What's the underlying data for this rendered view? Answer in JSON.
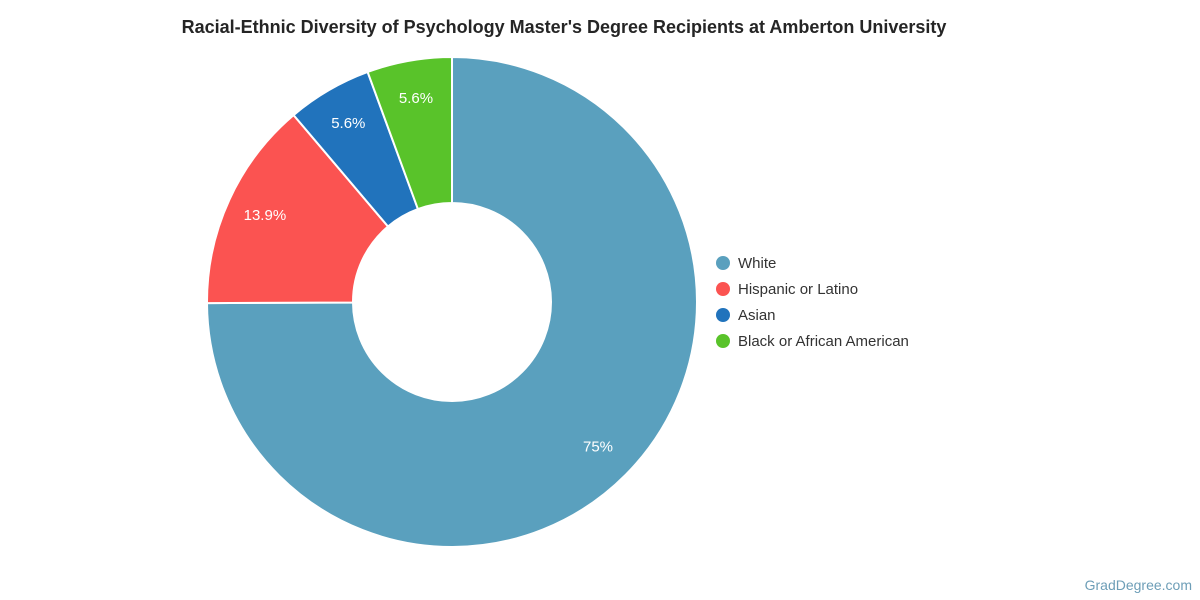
{
  "title": "Racial-Ethnic Diversity of Psychology Master's Degree Recipients at Amberton University",
  "watermark": "GradDegree.com",
  "colors": {
    "background": "#ffffff",
    "title_text": "#252525",
    "legend_text": "#333333",
    "slice_label_text": "#ffffff",
    "watermark_text": "#6D9EB7",
    "slice_separator": "#ffffff"
  },
  "chart_data": {
    "type": "pie",
    "subtype": "donut",
    "title": "Racial-Ethnic Diversity of Psychology Master's Degree Recipients at Amberton University",
    "categories": [
      "White",
      "Hispanic or Latino",
      "Asian",
      "Black or African American"
    ],
    "values": [
      75,
      13.9,
      5.6,
      5.6
    ],
    "labels": [
      "75%",
      "13.9%",
      "5.6%",
      "5.6%"
    ],
    "slice_colors": [
      "#5AA0BE",
      "#FB5351",
      "#2173BC",
      "#59C32A"
    ],
    "legend_position": "right",
    "start_angle_deg": 0,
    "direction": "clockwise",
    "grid": false,
    "donut_hole_ratio": 0.4
  }
}
